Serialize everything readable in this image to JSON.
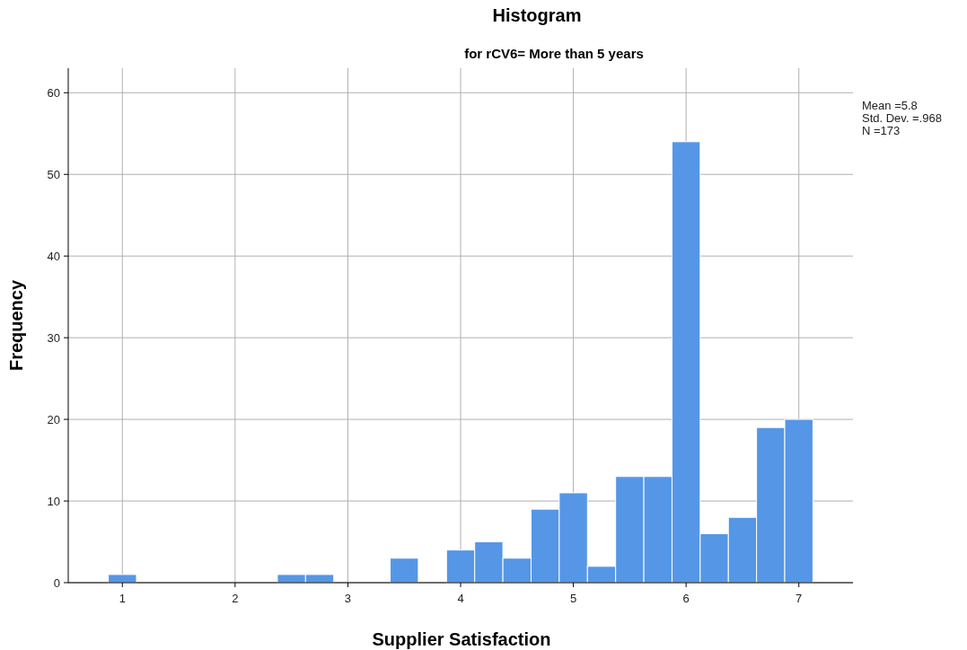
{
  "chart_data": {
    "type": "histogram",
    "title": "Histogram",
    "subtitle": "for rCV6= More than 5 years",
    "xlabel": "Supplier Satisfaction",
    "ylabel": "Frequency",
    "bins": [
      0.875,
      1.125,
      1.375,
      1.625,
      1.875,
      2.125,
      2.375,
      2.625,
      2.875,
      3.125,
      3.375,
      3.625,
      3.875,
      4.125,
      4.375,
      4.625,
      4.875,
      5.125,
      5.375,
      5.625,
      5.875,
      6.125,
      6.375,
      6.625,
      6.875,
      7.125
    ],
    "values": [
      1,
      0,
      0,
      0,
      0,
      0,
      1,
      1,
      0,
      0,
      3,
      0,
      4,
      5,
      3,
      9,
      11,
      2,
      13,
      13,
      54,
      6,
      8,
      19,
      20
    ],
    "color": "#5596e6",
    "xlim": [
      0.52,
      7.48
    ],
    "ylim": [
      0,
      63
    ],
    "xticks": [
      1,
      2,
      3,
      4,
      5,
      6,
      7
    ],
    "yticks": [
      0,
      10,
      20,
      30,
      40,
      50,
      60
    ],
    "grid": true,
    "annotations": [
      "Mean =5.8",
      "Std. Dev. =.968",
      "N =173"
    ]
  }
}
